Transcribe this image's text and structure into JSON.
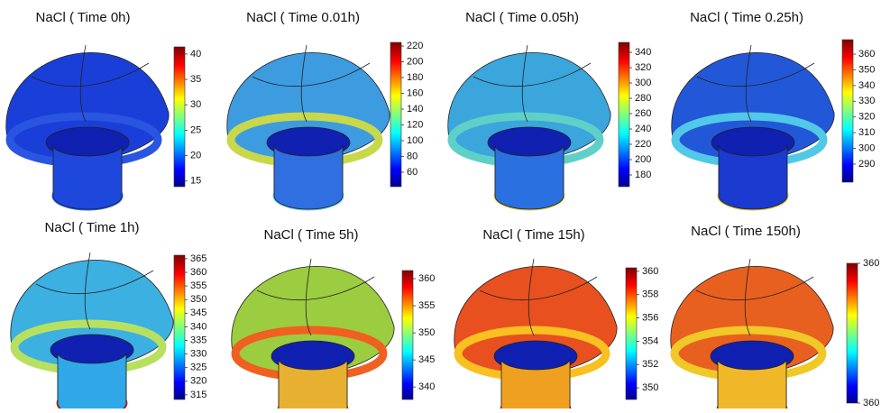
{
  "panels": [
    {
      "title": "NaCl ( Time 0h)",
      "range": [
        13.9,
        41.4
      ],
      "ticks": [
        15,
        20,
        25,
        30,
        35,
        40
      ]
    },
    {
      "title": "NaCl ( Time 0.01h)",
      "range": [
        41.7,
        224.6
      ],
      "ticks": [
        60,
        80,
        100,
        120,
        140,
        160,
        180,
        200,
        220
      ]
    },
    {
      "title": "NaCl ( Time 0.05h)",
      "range": [
        164.7,
        353
      ],
      "ticks": [
        180,
        200,
        220,
        240,
        260,
        280,
        300,
        320,
        340
      ]
    },
    {
      "title": "NaCl ( Time 0.25h)",
      "range": [
        278.5,
        369.2
      ],
      "ticks": [
        290,
        300,
        310,
        320,
        330,
        340,
        350,
        360
      ]
    },
    {
      "title": "NaCl ( Time 1h)",
      "range": [
        313.3,
        366.3
      ],
      "ticks": [
        315,
        320,
        325,
        330,
        335,
        340,
        345,
        350,
        355,
        360,
        365
      ]
    },
    {
      "title": "NaCl ( Time 5h)",
      "range": [
        337.7,
        361.5
      ],
      "ticks": [
        340,
        345,
        350,
        355,
        360
      ]
    },
    {
      "title": "NaCl ( Time 15h)",
      "range": [
        349.0,
        360.3
      ],
      "ticks": [
        350,
        352,
        354,
        356,
        358,
        360
      ]
    },
    {
      "title": "NaCl ( Time 150h)",
      "range": [
        359.6,
        360.4
      ],
      "ticks": [
        {
          "value": 359.6,
          "label": "360"
        },
        {
          "value": 360.4,
          "label": "360"
        }
      ]
    }
  ]
}
